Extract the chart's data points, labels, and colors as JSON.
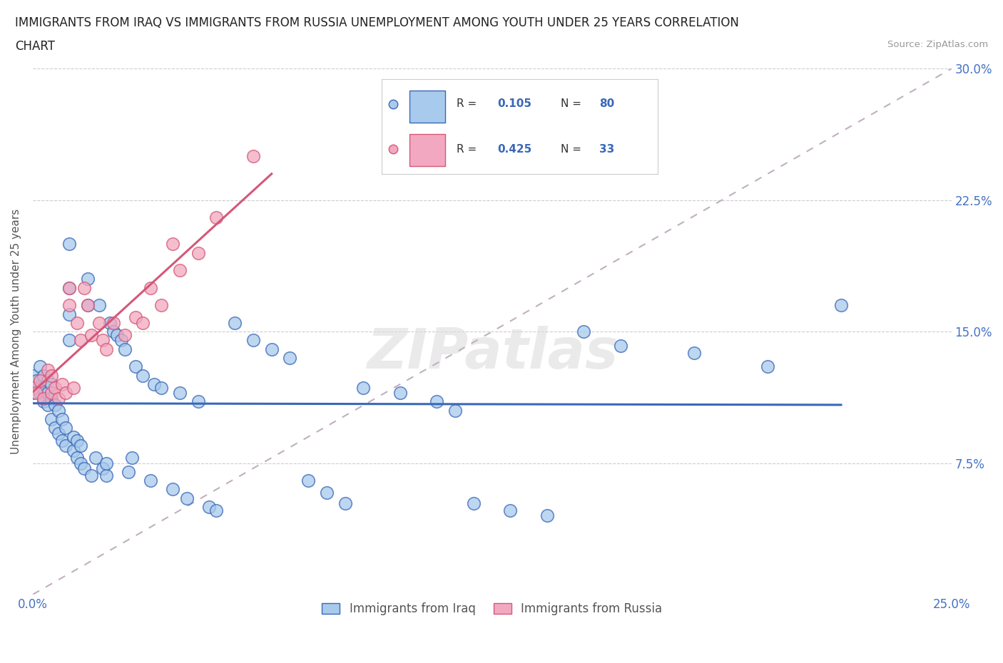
{
  "title_line1": "IMMIGRANTS FROM IRAQ VS IMMIGRANTS FROM RUSSIA UNEMPLOYMENT AMONG YOUTH UNDER 25 YEARS CORRELATION",
  "title_line2": "CHART",
  "source": "Source: ZipAtlas.com",
  "ylabel": "Unemployment Among Youth under 25 years",
  "xlim": [
    0.0,
    0.25
  ],
  "ylim": [
    0.0,
    0.3
  ],
  "R_iraq": 0.105,
  "N_iraq": 80,
  "R_russia": 0.425,
  "N_russia": 33,
  "color_iraq": "#A8CAEC",
  "color_russia": "#F2A8C0",
  "line_iraq": "#3A68B8",
  "line_russia": "#D45878",
  "line_trend_color": "#C0B0C0",
  "legend_label_iraq": "Immigrants from Iraq",
  "legend_label_russia": "Immigrants from Russia",
  "watermark": "ZIPatlas",
  "iraq_x": [
    0.0,
    0.0,
    0.0,
    0.001,
    0.001,
    0.002,
    0.002,
    0.003,
    0.003,
    0.003,
    0.004,
    0.004,
    0.004,
    0.005,
    0.005,
    0.005,
    0.006,
    0.006,
    0.007,
    0.007,
    0.008,
    0.008,
    0.009,
    0.009,
    0.01,
    0.01,
    0.01,
    0.01,
    0.011,
    0.011,
    0.012,
    0.012,
    0.013,
    0.013,
    0.014,
    0.015,
    0.015,
    0.016,
    0.017,
    0.018,
    0.019,
    0.02,
    0.02,
    0.021,
    0.022,
    0.023,
    0.024,
    0.025,
    0.026,
    0.027,
    0.028,
    0.03,
    0.032,
    0.033,
    0.035,
    0.038,
    0.04,
    0.042,
    0.045,
    0.048,
    0.05,
    0.055,
    0.06,
    0.065,
    0.07,
    0.075,
    0.08,
    0.085,
    0.09,
    0.1,
    0.11,
    0.115,
    0.12,
    0.13,
    0.14,
    0.15,
    0.16,
    0.18,
    0.2,
    0.22
  ],
  "iraq_y": [
    0.115,
    0.12,
    0.125,
    0.118,
    0.122,
    0.115,
    0.13,
    0.11,
    0.118,
    0.125,
    0.108,
    0.115,
    0.122,
    0.1,
    0.112,
    0.12,
    0.095,
    0.108,
    0.092,
    0.105,
    0.088,
    0.1,
    0.085,
    0.095,
    0.2,
    0.175,
    0.16,
    0.145,
    0.082,
    0.09,
    0.078,
    0.088,
    0.075,
    0.085,
    0.072,
    0.18,
    0.165,
    0.068,
    0.078,
    0.165,
    0.072,
    0.068,
    0.075,
    0.155,
    0.15,
    0.148,
    0.145,
    0.14,
    0.07,
    0.078,
    0.13,
    0.125,
    0.065,
    0.12,
    0.118,
    0.06,
    0.115,
    0.055,
    0.11,
    0.05,
    0.048,
    0.155,
    0.145,
    0.14,
    0.135,
    0.065,
    0.058,
    0.052,
    0.118,
    0.115,
    0.11,
    0.105,
    0.052,
    0.048,
    0.045,
    0.15,
    0.142,
    0.138,
    0.13,
    0.165
  ],
  "russia_x": [
    0.0,
    0.001,
    0.002,
    0.003,
    0.004,
    0.005,
    0.005,
    0.006,
    0.007,
    0.008,
    0.009,
    0.01,
    0.01,
    0.011,
    0.012,
    0.013,
    0.014,
    0.015,
    0.016,
    0.018,
    0.019,
    0.02,
    0.022,
    0.025,
    0.028,
    0.03,
    0.032,
    0.035,
    0.038,
    0.04,
    0.045,
    0.05,
    0.06
  ],
  "russia_y": [
    0.118,
    0.115,
    0.122,
    0.112,
    0.128,
    0.115,
    0.125,
    0.118,
    0.112,
    0.12,
    0.115,
    0.175,
    0.165,
    0.118,
    0.155,
    0.145,
    0.175,
    0.165,
    0.148,
    0.155,
    0.145,
    0.14,
    0.155,
    0.148,
    0.158,
    0.155,
    0.175,
    0.165,
    0.2,
    0.185,
    0.195,
    0.215,
    0.25
  ]
}
